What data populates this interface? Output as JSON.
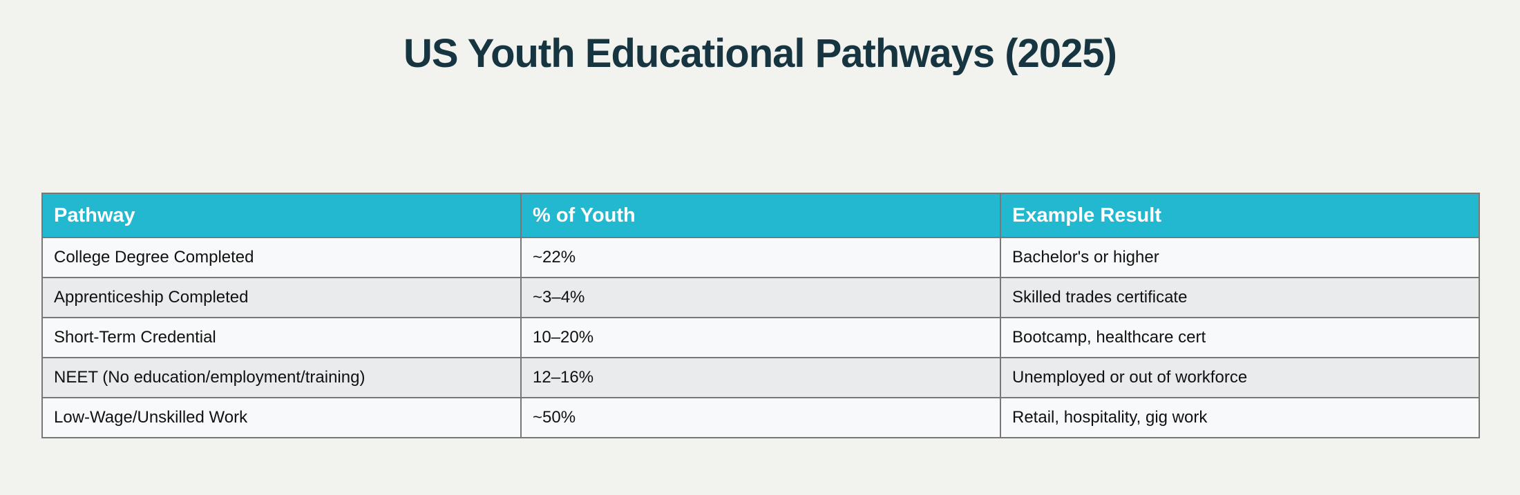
{
  "title": "US Youth Educational Pathways (2025)",
  "table": {
    "headers": [
      "Pathway",
      "% of Youth",
      "Example Result"
    ],
    "rows": [
      [
        "College Degree Completed",
        "~22%",
        "Bachelor's or higher"
      ],
      [
        "Apprenticeship Completed",
        "~3–4%",
        "Skilled trades certificate"
      ],
      [
        "Short-Term Credential",
        "10–20%",
        "Bootcamp, healthcare cert"
      ],
      [
        "NEET (No education/employment/training)",
        "12–16%",
        "Unemployed or out of workforce"
      ],
      [
        "Low-Wage/Unskilled Work",
        "~50%",
        "Retail, hospitality, gig work"
      ]
    ]
  }
}
